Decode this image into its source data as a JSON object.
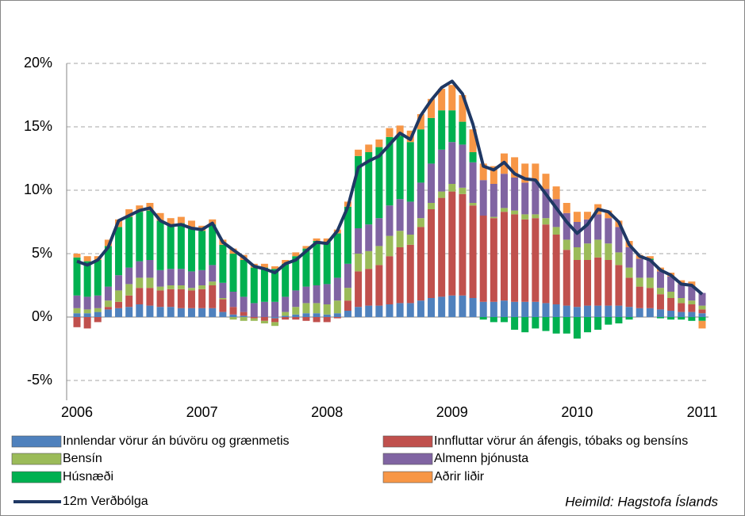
{
  "chart_data": {
    "type": "bar",
    "stacked": true,
    "categories": [
      "2006",
      null,
      null,
      null,
      null,
      null,
      null,
      null,
      null,
      null,
      null,
      null,
      "2007",
      null,
      null,
      null,
      null,
      null,
      null,
      null,
      null,
      null,
      null,
      null,
      "2008",
      null,
      null,
      null,
      null,
      null,
      null,
      null,
      null,
      null,
      null,
      null,
      "2009",
      null,
      null,
      null,
      null,
      null,
      null,
      null,
      null,
      null,
      null,
      null,
      "2010",
      null,
      null,
      null,
      null,
      null,
      null,
      null,
      null,
      null,
      null,
      null,
      "2011"
    ],
    "series": [
      {
        "name": "Innlendar vörur án búvöru og grænmetis",
        "color": "#4f81bd",
        "values": [
          0.3,
          0.3,
          0.4,
          0.6,
          0.7,
          0.8,
          1.0,
          0.9,
          0.8,
          0.8,
          0.7,
          0.7,
          0.7,
          0.7,
          0.4,
          0.2,
          0.1,
          0.0,
          0.0,
          -0.1,
          0.1,
          0.2,
          0.3,
          0.3,
          0.2,
          0.3,
          0.5,
          0.8,
          0.9,
          0.9,
          1.0,
          1.1,
          1.1,
          1.3,
          1.5,
          1.6,
          1.7,
          1.7,
          1.5,
          1.2,
          1.2,
          1.3,
          1.2,
          1.2,
          1.2,
          1.1,
          1.0,
          0.9,
          0.8,
          0.9,
          0.9,
          0.9,
          0.9,
          0.8,
          0.7,
          0.7,
          0.6,
          0.5,
          0.4,
          0.4,
          0.3
        ]
      },
      {
        "name": "Innfluttar vörur án áfengis, tóbaks og bensíns",
        "color": "#c0504d",
        "values": [
          -0.8,
          -0.9,
          -0.4,
          0.2,
          0.5,
          0.9,
          1.3,
          1.4,
          1.3,
          1.4,
          1.5,
          1.4,
          1.5,
          1.8,
          1.0,
          0.6,
          0.3,
          -0.1,
          -0.3,
          -0.3,
          -0.2,
          -0.2,
          -0.3,
          -0.4,
          -0.4,
          -0.1,
          0.8,
          2.8,
          2.9,
          3.2,
          3.8,
          4.4,
          4.6,
          5.8,
          7.0,
          7.8,
          8.2,
          8.0,
          7.3,
          6.8,
          6.6,
          7.0,
          6.9,
          6.5,
          6.6,
          6.2,
          5.5,
          4.4,
          3.7,
          3.6,
          3.8,
          3.6,
          3.2,
          2.3,
          1.7,
          1.6,
          1.2,
          1.0,
          0.7,
          0.6,
          0.3
        ]
      },
      {
        "name": "Bensín",
        "color": "#9bbb59",
        "values": [
          0.4,
          0.3,
          0.3,
          0.5,
          0.9,
          0.9,
          0.8,
          0.8,
          0.3,
          0.3,
          0.3,
          0.2,
          0.3,
          0.3,
          0.1,
          -0.2,
          -0.3,
          -0.2,
          -0.2,
          -0.3,
          0.3,
          0.6,
          0.8,
          0.8,
          0.8,
          1.0,
          1.0,
          1.4,
          1.4,
          1.5,
          1.6,
          1.3,
          0.8,
          0.7,
          0.5,
          0.5,
          0.6,
          0.5,
          0.2,
          0.0,
          0.1,
          0.3,
          0.3,
          0.4,
          0.3,
          0.5,
          0.6,
          0.8,
          1.0,
          1.3,
          1.4,
          1.3,
          1.0,
          0.8,
          0.7,
          0.8,
          0.5,
          0.5,
          0.4,
          0.3,
          0.3
        ]
      },
      {
        "name": "Almenn þjónusta",
        "color": "#8064a2",
        "values": [
          1.0,
          1.0,
          1.0,
          1.1,
          1.2,
          1.3,
          1.3,
          1.4,
          1.3,
          1.3,
          1.3,
          1.3,
          1.2,
          1.3,
          1.2,
          1.2,
          1.2,
          1.1,
          1.2,
          1.2,
          1.2,
          1.3,
          1.3,
          1.4,
          1.6,
          1.8,
          1.9,
          2.0,
          2.1,
          2.2,
          2.4,
          2.5,
          2.6,
          2.8,
          3.1,
          3.3,
          3.3,
          3.4,
          3.2,
          2.8,
          2.6,
          2.7,
          2.6,
          2.5,
          2.6,
          2.3,
          2.2,
          2.1,
          2.0,
          1.9,
          2.0,
          2.0,
          2.0,
          1.6,
          1.5,
          1.4,
          1.3,
          1.2,
          1.1,
          1.1,
          1.0
        ]
      },
      {
        "name": "Húsnæði",
        "color": "#00b050",
        "values": [
          3.0,
          2.8,
          2.8,
          3.2,
          3.8,
          4.0,
          3.9,
          3.9,
          3.9,
          3.4,
          3.6,
          3.5,
          3.1,
          3.2,
          3.0,
          3.0,
          2.9,
          2.8,
          2.7,
          2.6,
          2.6,
          2.7,
          3.0,
          3.5,
          3.3,
          3.5,
          4.5,
          5.7,
          5.7,
          5.6,
          5.4,
          5.0,
          4.7,
          4.2,
          3.6,
          3.1,
          2.5,
          1.8,
          0.8,
          -0.2,
          -0.4,
          -0.4,
          -1.0,
          -1.2,
          -0.9,
          -1.1,
          -1.3,
          -1.3,
          -1.7,
          -1.2,
          -1.0,
          -0.6,
          -0.5,
          -0.2,
          0.0,
          0.1,
          -0.1,
          -0.2,
          -0.2,
          -0.3,
          -0.3
        ]
      },
      {
        "name": "Aðrir liðir",
        "color": "#f79646",
        "values": [
          0.3,
          0.4,
          0.3,
          0.5,
          0.6,
          0.6,
          0.5,
          0.6,
          0.6,
          0.6,
          0.5,
          0.5,
          0.4,
          0.4,
          0.4,
          0.4,
          0.4,
          0.3,
          0.3,
          0.2,
          0.3,
          0.3,
          0.2,
          0.2,
          0.3,
          0.3,
          0.4,
          0.5,
          0.6,
          0.6,
          0.7,
          0.8,
          0.9,
          1.2,
          1.5,
          1.7,
          2.0,
          2.1,
          1.8,
          1.3,
          1.4,
          1.6,
          1.6,
          1.5,
          1.4,
          1.2,
          1.0,
          0.8,
          0.8,
          0.6,
          0.8,
          0.6,
          0.5,
          0.5,
          0.3,
          0.2,
          0.3,
          0.3,
          0.3,
          0.4,
          -0.6
        ]
      },
      {
        "name": "12m Verðbólga",
        "type": "line",
        "color": "#1f3864",
        "values": [
          4.4,
          4.1,
          4.5,
          5.5,
          7.6,
          8.0,
          8.4,
          8.6,
          7.6,
          7.2,
          7.3,
          7.0,
          6.9,
          7.4,
          5.9,
          5.3,
          4.7,
          4.0,
          3.8,
          3.5,
          4.2,
          4.5,
          5.2,
          5.9,
          5.8,
          6.8,
          8.7,
          11.8,
          12.3,
          12.7,
          13.6,
          14.5,
          14.0,
          15.9,
          17.1,
          18.1,
          18.6,
          17.6,
          15.2,
          11.9,
          11.6,
          12.2,
          11.3,
          10.9,
          10.8,
          9.7,
          8.6,
          7.5,
          6.6,
          7.3,
          8.5,
          8.3,
          7.5,
          5.7,
          4.8,
          4.5,
          3.7,
          3.3,
          2.6,
          2.5,
          1.8
        ]
      }
    ],
    "ylim": [
      -5,
      20
    ],
    "yticks": [
      {
        "value": -5,
        "label": "-5%"
      },
      {
        "value": 0,
        "label": "0%"
      },
      {
        "value": 5,
        "label": "5%"
      },
      {
        "value": 10,
        "label": "10%"
      },
      {
        "value": 15,
        "label": "15%"
      },
      {
        "value": 20,
        "label": "20%"
      }
    ],
    "grid": true,
    "legend": "bottom",
    "source": "Heimild: Hagstofa Íslands"
  }
}
